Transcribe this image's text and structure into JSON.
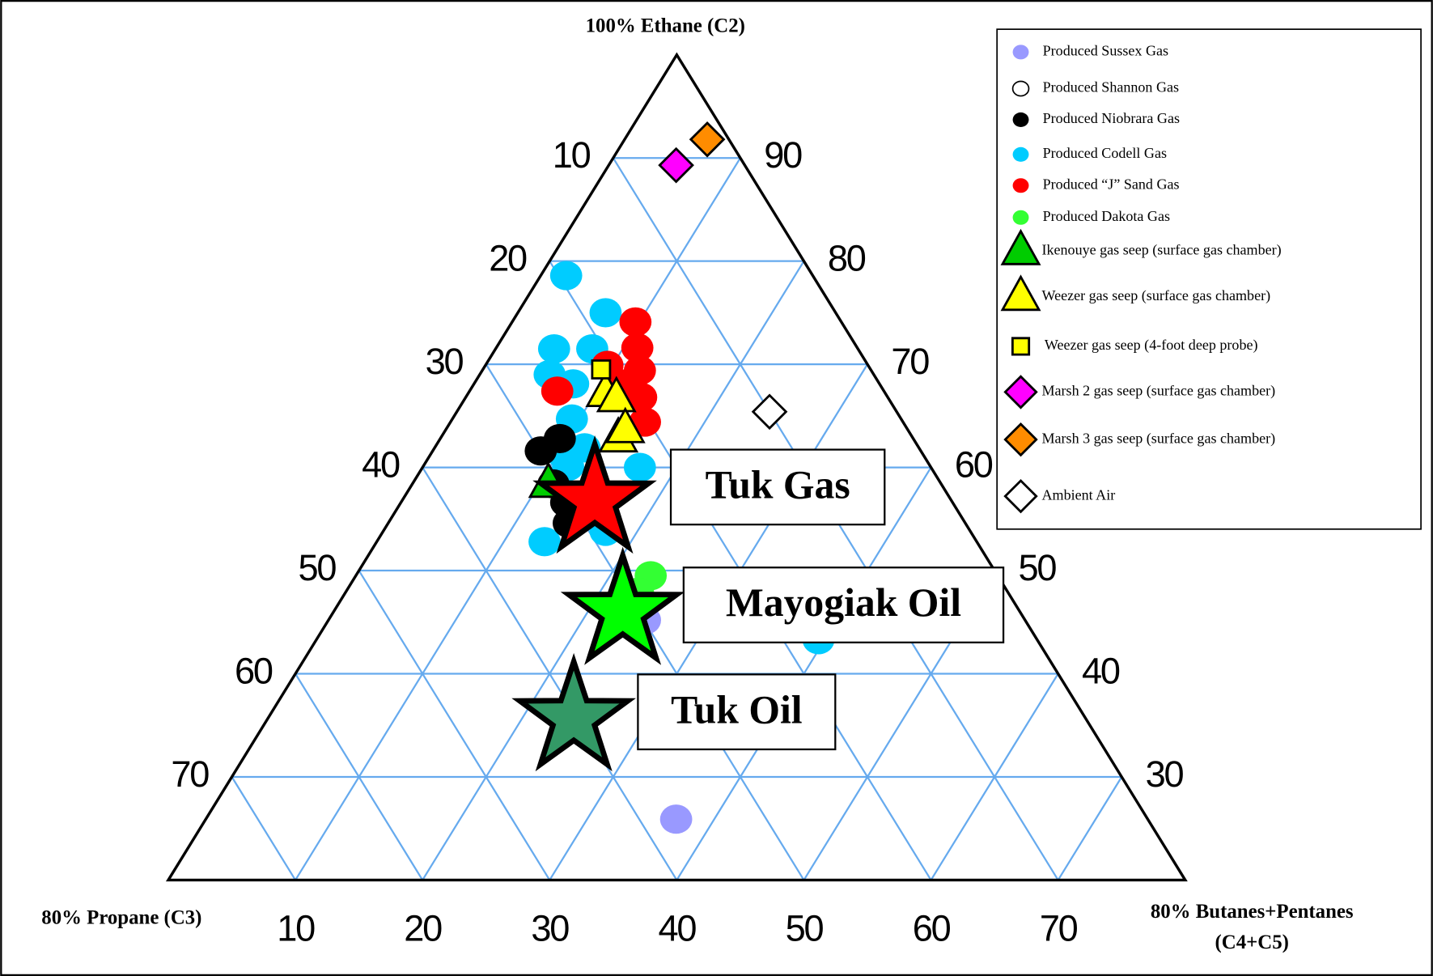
{
  "chart_data": {
    "type": "ternary",
    "title": "100% Ethane (C2)",
    "left_title": "80% Propane (C3)",
    "right_title": [
      "80% Butanes+Pentanes",
      "(C4+C5)"
    ],
    "left_ticks": [
      10,
      20,
      30,
      40,
      50,
      60,
      70
    ],
    "right_ticks": [
      90,
      80,
      70,
      60,
      50,
      40,
      30
    ],
    "bottom_ticks": [
      10,
      20,
      30,
      40,
      50,
      60,
      70
    ],
    "ethane_lim": [
      20,
      100
    ],
    "bottom_lim": [
      0,
      80
    ],
    "left_lim": [
      0,
      80
    ],
    "grid": true,
    "legend": "upper right",
    "series": [
      {
        "name": "Produced Sussex Gas",
        "color": "#9999ff",
        "marker": "circle",
        "x": [
          24.9,
          37.0
        ],
        "y": [
          45.2,
          25.9
        ]
      },
      {
        "name": "Produced Shannon Gas",
        "color": "#ffffff",
        "marker": "circle",
        "x": [],
        "y": []
      },
      {
        "name": "Produced Codell Gas",
        "color": "#00ccff",
        "marker": "circle",
        "x": [
          2.0,
          6.9,
          4.6,
          7.6,
          5.5,
          7.8,
          9.4,
          10.1,
          11.8,
          11.4,
          17.1,
          13.2,
          17.5,
          39.5
        ],
        "y": [
          78.6,
          75.0,
          71.5,
          71.5,
          69.0,
          68.1,
          64.7,
          61.5,
          61.9,
          60.1,
          60.0,
          52.8,
          53.8,
          43.3
        ]
      },
      {
        "name": "Produced Niobrara Gas",
        "color": "#000000",
        "marker": "circle",
        "x": [
          8.5,
          9.4,
          13.0,
          14.2,
          11.1
        ],
        "y": [
          61.6,
          62.8,
          56.6,
          54.6,
          58.4
        ]
      },
      {
        "name": "Produced “J” Sand Gas",
        "color": "#ff0000",
        "marker": "circle",
        "x": [
          9.7,
          11.1,
          12.4,
          9.6,
          13.8,
          15.3,
          6.9,
          11.6
        ],
        "y": [
          74.1,
          71.6,
          69.4,
          69.9,
          66.8,
          64.4,
          67.4,
          68.1
        ]
      },
      {
        "name": "Produced Dakota Gas",
        "color": "#33ff33",
        "marker": "circle",
        "x": [
          23.2,
          23.0
        ],
        "y": [
          49.5,
          47.9
        ]
      },
      {
        "name": "Ikenouye gas seep (surface gas chamber)",
        "color": "#00cc00",
        "marker": "triangle",
        "x": [
          10.7
        ],
        "y": [
          58.4
        ]
      },
      {
        "name": "Weezer gas seep (surface gas chamber)",
        "color": "#ffff00",
        "marker": "triangle",
        "x": [
          10.8,
          11.9,
          14.0,
          14.1
        ],
        "y": [
          67.2,
          66.7,
          62.8,
          63.7
        ]
      },
      {
        "name": "Weezer gas seep (4-foot deep probe)",
        "color": "#ffff00",
        "marker": "square",
        "x": [
          9.3
        ],
        "y": [
          69.5
        ]
      },
      {
        "name": "Marsh 2 gas seep (surface gas chamber)",
        "color": "#ff00ff",
        "marker": "diamond",
        "x": [
          5.3
        ],
        "y": [
          89.3
        ]
      },
      {
        "name": "Marsh 3 gas seep (surface gas chamber)",
        "color": "#ff8c00",
        "marker": "diamond",
        "x": [
          6.5
        ],
        "y": [
          91.8
        ]
      },
      {
        "name": "Ambient Air",
        "color": "#ffffff",
        "marker": "diamond",
        "x": [
          24.6
        ],
        "y": [
          65.4
        ]
      }
    ],
    "stars": [
      {
        "name": "Tuk Gas",
        "color": "#ff0000",
        "x": [
          14.9
        ],
        "y": [
          57.3
        ]
      },
      {
        "name": "Mayogiak Oil",
        "color": "#00ff00",
        "x": [
          22.5
        ],
        "y": [
          46.5
        ]
      },
      {
        "name": "Tuk Oil",
        "color": "#339966",
        "x": [
          23.8
        ],
        "y": [
          36.2
        ]
      }
    ]
  }
}
